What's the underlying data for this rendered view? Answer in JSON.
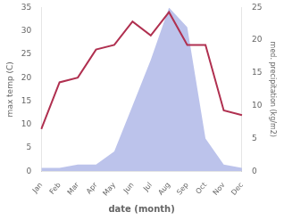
{
  "chart_data": {
    "type": "line",
    "xlabel": "date (month)",
    "ylabel": "max temp (C)",
    "y2label": "med. precipitation (kg/m2)",
    "categories": [
      "Jan",
      "Feb",
      "Mar",
      "Apr",
      "May",
      "Jun",
      "Jul",
      "Aug",
      "Sep",
      "Oct",
      "Nov",
      "Dec"
    ],
    "series": [
      {
        "type": "area",
        "axis": "y2",
        "color": "#b0b8e8",
        "values": [
          0.5,
          0.5,
          1,
          1,
          3,
          10,
          17,
          25,
          22,
          5,
          1,
          0.5
        ]
      },
      {
        "type": "line",
        "color": "#b03050",
        "values": [
          9,
          19,
          20,
          26,
          27,
          32,
          29,
          34,
          27,
          27,
          13,
          12
        ]
      }
    ],
    "ylim": [
      0,
      35
    ],
    "yticks": [
      0,
      5,
      10,
      15,
      20,
      25,
      30,
      35
    ],
    "y2lim": [
      0,
      25
    ],
    "y2ticks": [
      0,
      5,
      10,
      15,
      20,
      25
    ],
    "grid": false
  }
}
